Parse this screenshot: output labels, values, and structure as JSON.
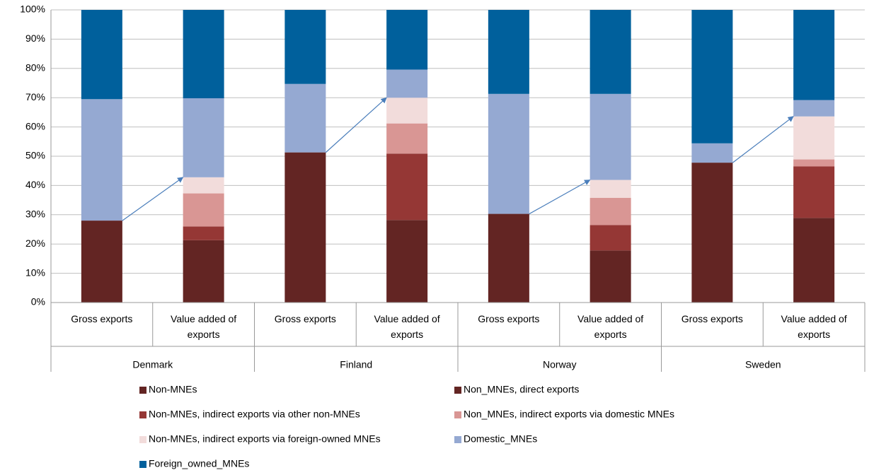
{
  "chart_data": {
    "type": "stacked_bar_100",
    "categories": [
      "Gross exports",
      "Value added of exports",
      "Gross exports",
      "Value added of exports",
      "Gross exports",
      "Value added of exports",
      "Gross exports",
      "Value added of exports"
    ],
    "groups": [
      "Denmark",
      "Finland",
      "Norway",
      "Sweden"
    ],
    "series": [
      {
        "name": "Non-MNEs",
        "color": "#632523",
        "values": [
          28,
          null,
          51.3,
          null,
          30.3,
          null,
          47.8,
          null
        ]
      },
      {
        "name": "Non_MNEs, direct exports",
        "color": "#632523",
        "values": [
          null,
          21.3,
          null,
          28.2,
          null,
          17.8,
          null,
          28.9
        ]
      },
      {
        "name": "Non-MNEs, indirect exports via other non-MNEs",
        "color": "#953735",
        "values": [
          null,
          4.7,
          null,
          22.7,
          null,
          8.7,
          null,
          17.6
        ]
      },
      {
        "name": "Non_MNEs, indirect exports via domestic MNEs",
        "color": "#d99694",
        "values": [
          null,
          11.3,
          null,
          10.3,
          null,
          9.3,
          null,
          2.4
        ]
      },
      {
        "name": "Non-MNEs, indirect exports via foreign-owned MNEs",
        "color": "#f2dcdb",
        "values": [
          null,
          5.5,
          null,
          8.8,
          null,
          6.1,
          null,
          14.7
        ]
      },
      {
        "name": "Domestic_MNEs",
        "color": "#95a9d2",
        "values": [
          41.5,
          27,
          23.4,
          9.6,
          41,
          29.4,
          6.6,
          5.6
        ]
      },
      {
        "name": "Foreign_owned_MNEs",
        "color": "#00609c",
        "values": [
          30.5,
          30.2,
          25.3,
          20.4,
          28.7,
          28.7,
          45.6,
          30.8
        ]
      }
    ],
    "ylim": [
      0,
      100
    ],
    "yticks": [
      {
        "value": 0,
        "label": "0%"
      },
      {
        "value": 10,
        "label": "10%"
      },
      {
        "value": 20,
        "label": "20%"
      },
      {
        "value": 30,
        "label": "30%"
      },
      {
        "value": 40,
        "label": "40%"
      },
      {
        "value": 50,
        "label": "50%"
      },
      {
        "value": 60,
        "label": "60%"
      },
      {
        "value": 70,
        "label": "70%"
      },
      {
        "value": 80,
        "label": "80%"
      },
      {
        "value": 90,
        "label": "90%"
      },
      {
        "value": 100,
        "label": "100%"
      }
    ],
    "grid": true,
    "legend_position": "bottom"
  }
}
